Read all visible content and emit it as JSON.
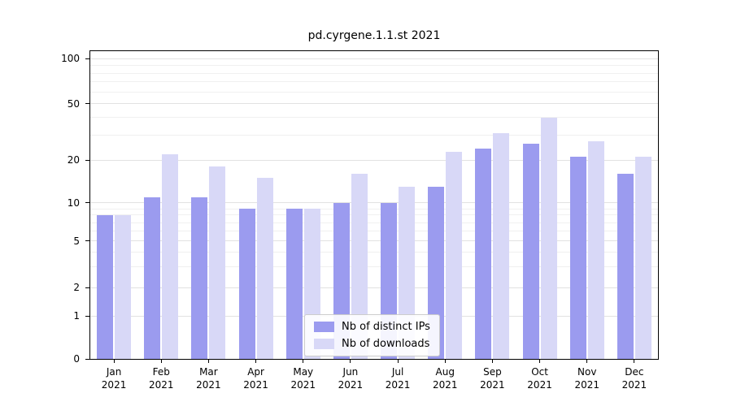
{
  "chart_data": {
    "type": "bar",
    "title": "pd.cyrgene.1.1.st 2021",
    "xlabel": "",
    "ylabel": "",
    "categories": [
      "Jan 2021",
      "Feb 2021",
      "Mar 2021",
      "Apr 2021",
      "May 2021",
      "Jun 2021",
      "Jul 2021",
      "Aug 2021",
      "Sep 2021",
      "Oct 2021",
      "Nov 2021",
      "Dec 2021"
    ],
    "series": [
      {
        "name": "Nb of distinct IPs",
        "color": "#9b9bef",
        "values": [
          8,
          11,
          11,
          9,
          9,
          10,
          10,
          13,
          24,
          26,
          21,
          16
        ]
      },
      {
        "name": "Nb of downloads",
        "color": "#d8d8f7",
        "values": [
          8,
          22,
          18,
          15,
          9,
          16,
          13,
          23,
          31,
          40,
          27,
          21
        ]
      }
    ],
    "yticks": [
      0,
      1,
      2,
      5,
      10,
      20,
      50,
      100
    ],
    "ylim": [
      0,
      100
    ],
    "yscale": "log-like",
    "grid": true,
    "legend_position": "bottom-center"
  }
}
